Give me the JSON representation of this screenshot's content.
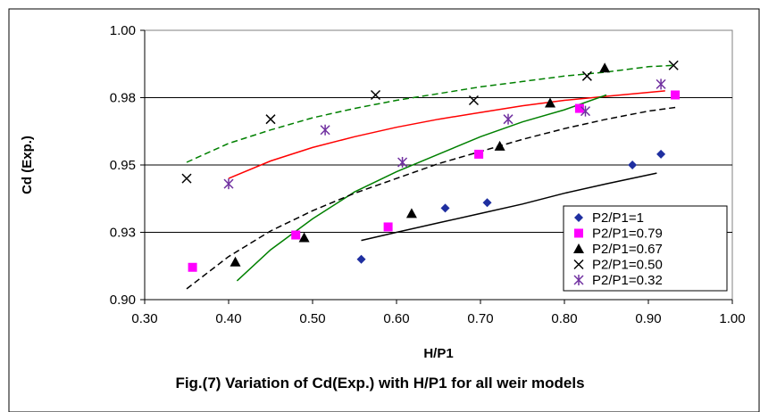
{
  "caption": "Fig.(7) Variation of Cd(Exp.) with H/P1 for all weir models",
  "chart_data": {
    "type": "scatter",
    "title": "",
    "xlabel": "H/P1",
    "ylabel": "Cd (Exp.)",
    "xlim": [
      0.3,
      1.0
    ],
    "ylim": [
      0.9,
      1.0
    ],
    "x_ticks": [
      "0.30",
      "0.40",
      "0.50",
      "0.60",
      "0.70",
      "0.80",
      "0.90",
      "1.00"
    ],
    "y_ticks": [
      "0.90",
      "0.93",
      "0.95",
      "0.98",
      "1.00"
    ],
    "y_tick_values": [
      0.9,
      0.925,
      0.95,
      0.975,
      1.0
    ],
    "legend_position": "bottom-right",
    "series": [
      {
        "name": "P2/P1=1",
        "marker": "diamond",
        "color": "#1f2fa0",
        "points": [
          [
            0.558,
            0.915
          ],
          [
            0.658,
            0.934
          ],
          [
            0.708,
            0.936
          ],
          [
            0.843,
            0.932
          ],
          [
            0.881,
            0.95
          ],
          [
            0.915,
            0.954
          ]
        ],
        "trend": [
          [
            0.558,
            0.922
          ],
          [
            0.6,
            0.925
          ],
          [
            0.65,
            0.9285
          ],
          [
            0.7,
            0.932
          ],
          [
            0.75,
            0.9355
          ],
          [
            0.8,
            0.9395
          ],
          [
            0.85,
            0.943
          ],
          [
            0.91,
            0.947
          ]
        ],
        "trend_color": "#000000",
        "trend_dash": "solid"
      },
      {
        "name": "P2/P1=0.79",
        "marker": "square",
        "color": "#ff00ff",
        "points": [
          [
            0.357,
            0.912
          ],
          [
            0.48,
            0.924
          ],
          [
            0.59,
            0.927
          ],
          [
            0.698,
            0.954
          ],
          [
            0.818,
            0.971
          ],
          [
            0.932,
            0.976
          ]
        ],
        "trend": [
          [
            0.4,
            0.945
          ],
          [
            0.45,
            0.9515
          ],
          [
            0.5,
            0.9565
          ],
          [
            0.55,
            0.9605
          ],
          [
            0.6,
            0.964
          ],
          [
            0.65,
            0.967
          ],
          [
            0.7,
            0.9695
          ],
          [
            0.75,
            0.972
          ],
          [
            0.8,
            0.974
          ],
          [
            0.85,
            0.9755
          ],
          [
            0.92,
            0.9775
          ]
        ],
        "trend_color": "#ff0000",
        "trend_dash": "solid"
      },
      {
        "name": "P2/P1=0.67",
        "marker": "triangle",
        "color": "#000000",
        "points": [
          [
            0.408,
            0.914
          ],
          [
            0.49,
            0.923
          ],
          [
            0.618,
            0.932
          ],
          [
            0.723,
            0.957
          ],
          [
            0.783,
            0.973
          ],
          [
            0.848,
            0.986
          ]
        ],
        "trend": [
          [
            0.41,
            0.907
          ],
          [
            0.45,
            0.9185
          ],
          [
            0.5,
            0.93
          ],
          [
            0.55,
            0.94
          ],
          [
            0.6,
            0.9475
          ],
          [
            0.65,
            0.954
          ],
          [
            0.7,
            0.9605
          ],
          [
            0.75,
            0.966
          ],
          [
            0.8,
            0.9705
          ],
          [
            0.85,
            0.976
          ]
        ],
        "trend_color": "#008000",
        "trend_dash": "solid"
      },
      {
        "name": "P2/P1=0.50",
        "marker": "x",
        "color": "#000000",
        "points": [
          [
            0.35,
            0.945
          ],
          [
            0.45,
            0.967
          ],
          [
            0.575,
            0.976
          ],
          [
            0.692,
            0.974
          ],
          [
            0.827,
            0.983
          ],
          [
            0.93,
            0.987
          ]
        ],
        "trend": [
          [
            0.35,
            0.951
          ],
          [
            0.4,
            0.958
          ],
          [
            0.45,
            0.963
          ],
          [
            0.5,
            0.9675
          ],
          [
            0.55,
            0.971
          ],
          [
            0.6,
            0.974
          ],
          [
            0.65,
            0.9765
          ],
          [
            0.7,
            0.979
          ],
          [
            0.75,
            0.981
          ],
          [
            0.8,
            0.983
          ],
          [
            0.85,
            0.9845
          ],
          [
            0.9,
            0.9865
          ],
          [
            0.93,
            0.987
          ]
        ],
        "trend_color": "#008000",
        "trend_dash": "dashed"
      },
      {
        "name": "P2/P1=0.32",
        "marker": "asterisk",
        "color": "#7030a0",
        "points": [
          [
            0.4,
            0.943
          ],
          [
            0.515,
            0.963
          ],
          [
            0.607,
            0.951
          ],
          [
            0.733,
            0.967
          ],
          [
            0.825,
            0.97
          ],
          [
            0.915,
            0.98
          ]
        ],
        "trend": [
          [
            0.35,
            0.904
          ],
          [
            0.4,
            0.916
          ],
          [
            0.45,
            0.9255
          ],
          [
            0.5,
            0.933
          ],
          [
            0.55,
            0.9395
          ],
          [
            0.6,
            0.945
          ],
          [
            0.65,
            0.9505
          ],
          [
            0.7,
            0.955
          ],
          [
            0.75,
            0.9595
          ],
          [
            0.8,
            0.9635
          ],
          [
            0.85,
            0.967
          ],
          [
            0.9,
            0.97
          ],
          [
            0.935,
            0.9715
          ]
        ],
        "trend_color": "#000000",
        "trend_dash": "dashed"
      }
    ]
  }
}
